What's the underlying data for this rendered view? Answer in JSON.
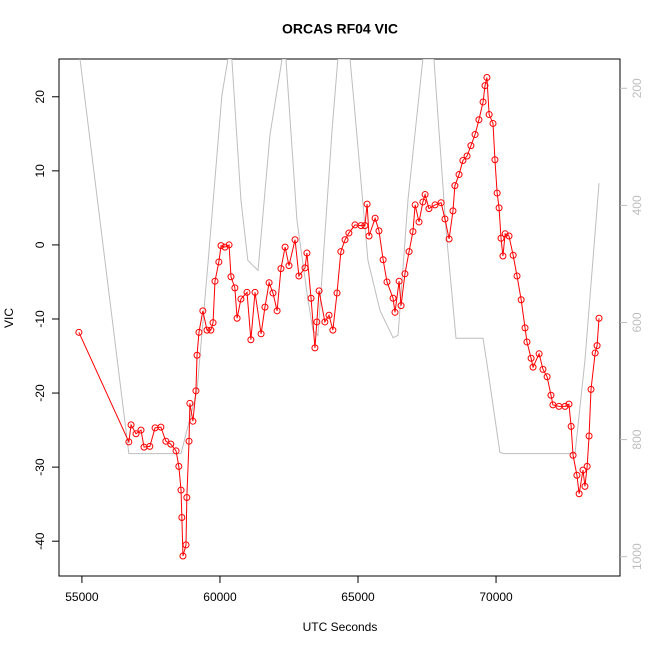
{
  "chart_data": {
    "type": "line",
    "title": "ORCAS RF04 VIC",
    "xlabel": "UTC Seconds",
    "ylabel": "VIC",
    "xlim": [
      54170,
      74490
    ],
    "ylim": [
      -44.7,
      25.1
    ],
    "y2lim": [
      1033,
      150
    ],
    "xticks": [
      55000,
      60000,
      65000,
      70000
    ],
    "yticks": [
      -40,
      -30,
      -20,
      -10,
      0,
      10,
      20
    ],
    "y2ticks": [
      200,
      400,
      600,
      800,
      1000
    ],
    "series": [
      {
        "color": "#ff0000",
        "marker": "circle",
        "x": [
          54890,
          56700,
          56780,
          56960,
          57140,
          57250,
          57460,
          57650,
          57860,
          58040,
          58220,
          58410,
          58510,
          58590,
          58620,
          58660,
          58770,
          58800,
          58880,
          58910,
          59020,
          59130,
          59170,
          59240,
          59380,
          59530,
          59670,
          59750,
          59820,
          59960,
          60040,
          60180,
          60330,
          60400,
          60540,
          60620,
          60760,
          60980,
          61120,
          61270,
          61490,
          61630,
          61780,
          61920,
          62070,
          62210,
          62360,
          62500,
          62720,
          62860,
          63080,
          63150,
          63300,
          63440,
          63510,
          63590,
          63800,
          63950,
          64090,
          64240,
          64380,
          64530,
          64670,
          64890,
          65110,
          65250,
          65330,
          65400,
          65620,
          65760,
          65910,
          66050,
          66270,
          66340,
          66490,
          66560,
          66700,
          66850,
          66990,
          67070,
          67210,
          67350,
          67430,
          67570,
          67790,
          68010,
          68150,
          68300,
          68440,
          68510,
          68660,
          68800,
          68950,
          69090,
          69240,
          69380,
          69530,
          69600,
          69670,
          69750,
          69890,
          69960,
          70040,
          70110,
          70180,
          70250,
          70330,
          70470,
          70620,
          70760,
          70910,
          71050,
          71120,
          71270,
          71340,
          71560,
          71700,
          71850,
          71990,
          72060,
          72280,
          72500,
          72640,
          72720,
          72790,
          72930,
          73010,
          73150,
          73220,
          73300,
          73370,
          73440,
          73590,
          73660,
          73730
        ],
        "values": [
          -11.8,
          -26.6,
          -24.3,
          -25.5,
          -25.0,
          -27.3,
          -27.2,
          -24.7,
          -24.6,
          -26.5,
          -26.9,
          -27.8,
          -29.9,
          -33.1,
          -36.8,
          -42.0,
          -40.5,
          -34.1,
          -26.5,
          -21.4,
          -23.8,
          -19.7,
          -14.9,
          -11.8,
          -8.9,
          -11.5,
          -11.5,
          -10.5,
          -4.9,
          -2.3,
          -0.1,
          -0.3,
          0,
          -4.3,
          -5.8,
          -9.9,
          -7.3,
          -6.4,
          -12.8,
          -6.4,
          -12.0,
          -8.4,
          -5.1,
          -6.5,
          -8.9,
          -3.2,
          -0.3,
          -2.8,
          0.7,
          -4.2,
          -3.1,
          -1.1,
          -7.2,
          -13.9,
          -10.4,
          -6.2,
          -10.4,
          -9.5,
          -11.5,
          -6.5,
          -0.9,
          0.7,
          1.6,
          2.7,
          2.6,
          2.6,
          5.5,
          1.2,
          3.6,
          1.9,
          -2.0,
          -5.0,
          -7.2,
          -9.1,
          -4.9,
          -8.2,
          -3.9,
          -0.9,
          1.8,
          5.4,
          3.1,
          5.8,
          6.8,
          4.9,
          5.4,
          5.7,
          3.5,
          0.8,
          4.6,
          8.0,
          9.5,
          11.4,
          12.0,
          13.4,
          14.9,
          16.9,
          19.3,
          21.5,
          22.6,
          17.6,
          16.4,
          11.5,
          7.0,
          5.0,
          0.9,
          -1.5,
          1.5,
          1.2,
          -1.4,
          -4.2,
          -7.4,
          -11.2,
          -13.1,
          -15.3,
          -16.5,
          -14.7,
          -16.8,
          -17.8,
          -20.3,
          -21.6,
          -21.8,
          -21.8,
          -21.5,
          -24.5,
          -28.4,
          -31.1,
          -33.6,
          -30.4,
          -32.6,
          -29.9,
          -25.8,
          -19.5,
          -14.6,
          -13.6,
          -9.9
        ]
      },
      {
        "color": "#bebebe",
        "axis": "y2",
        "x": [
          54930,
          56700,
          58590,
          59170,
          59570,
          60070,
          60290,
          60430,
          60760,
          61010,
          61380,
          61810,
          62250,
          62390,
          62790,
          63190,
          63370,
          63550,
          64060,
          64270,
          64710,
          64850,
          65360,
          65800,
          66270,
          66450,
          66810,
          67350,
          67750,
          68190,
          68550,
          69530,
          69670,
          70140,
          70290,
          72860,
          73220,
          73730
        ],
        "values": [
          150,
          824,
          824,
          716,
          497,
          212,
          150,
          150,
          391,
          494,
          511,
          280,
          150,
          150,
          426,
          562,
          614,
          622,
          272,
          150,
          150,
          221,
          494,
          580,
          626,
          622,
          391,
          150,
          150,
          443,
          627,
          627,
          670,
          822,
          824,
          824,
          665,
          362
        ]
      }
    ]
  }
}
